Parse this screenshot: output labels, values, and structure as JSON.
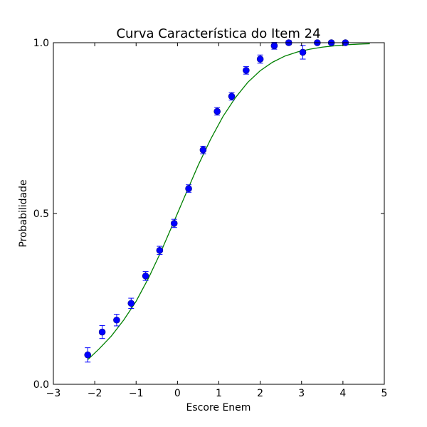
{
  "chart_data": {
    "type": "scatter",
    "title": "Curva Característica do Item 24",
    "xlabel": "Escore Enem",
    "ylabel": "Probabilidade",
    "xlim": [
      -3,
      5
    ],
    "ylim": [
      0.0,
      1.0
    ],
    "x_ticks": [
      -3,
      -2,
      -1,
      0,
      1,
      2,
      3,
      4,
      5
    ],
    "x_tick_labels": [
      "−3",
      "−2",
      "−1",
      "0",
      "1",
      "2",
      "3",
      "4",
      "5"
    ],
    "y_ticks": [
      0.0,
      0.5,
      1.0
    ],
    "y_tick_labels": [
      "0.0",
      "0.5",
      "1.0"
    ],
    "grid": false,
    "series": [
      {
        "kind": "points_with_error_bars",
        "color": "#0000ff",
        "points": [
          {
            "x": -2.17,
            "y": 0.086,
            "err": 0.021
          },
          {
            "x": -1.82,
            "y": 0.153,
            "err": 0.019
          },
          {
            "x": -1.47,
            "y": 0.188,
            "err": 0.017
          },
          {
            "x": -1.12,
            "y": 0.237,
            "err": 0.015
          },
          {
            "x": -0.77,
            "y": 0.317,
            "err": 0.013
          },
          {
            "x": -0.43,
            "y": 0.392,
            "err": 0.012
          },
          {
            "x": -0.08,
            "y": 0.471,
            "err": 0.012
          },
          {
            "x": 0.27,
            "y": 0.573,
            "err": 0.011
          },
          {
            "x": 0.62,
            "y": 0.686,
            "err": 0.011
          },
          {
            "x": 0.96,
            "y": 0.799,
            "err": 0.011
          },
          {
            "x": 1.31,
            "y": 0.843,
            "err": 0.011
          },
          {
            "x": 1.66,
            "y": 0.919,
            "err": 0.011
          },
          {
            "x": 2.0,
            "y": 0.952,
            "err": 0.012
          },
          {
            "x": 2.34,
            "y": 0.991,
            "err": 0.01
          },
          {
            "x": 2.69,
            "y": 1.0,
            "err": 0.006
          },
          {
            "x": 3.03,
            "y": 0.972,
            "err": 0.02
          },
          {
            "x": 3.38,
            "y": 1.0,
            "err": 0.004
          },
          {
            "x": 3.72,
            "y": 1.0,
            "err": 0.004
          },
          {
            "x": 4.06,
            "y": 1.0,
            "err": 0.003
          }
        ]
      },
      {
        "kind": "curve",
        "color": "#008000",
        "x": [
          -2.17,
          -1.9,
          -1.6,
          -1.3,
          -1.0,
          -0.7,
          -0.4,
          -0.1,
          0.2,
          0.5,
          0.8,
          1.1,
          1.4,
          1.7,
          2.0,
          2.3,
          2.6,
          2.9,
          3.2,
          3.5,
          3.8,
          4.1,
          4.4,
          4.65
        ],
        "y": [
          0.072,
          0.103,
          0.141,
          0.188,
          0.243,
          0.311,
          0.388,
          0.472,
          0.557,
          0.641,
          0.717,
          0.784,
          0.839,
          0.884,
          0.918,
          0.943,
          0.961,
          0.973,
          0.981,
          0.987,
          0.991,
          0.994,
          0.996,
          0.997
        ]
      }
    ]
  }
}
